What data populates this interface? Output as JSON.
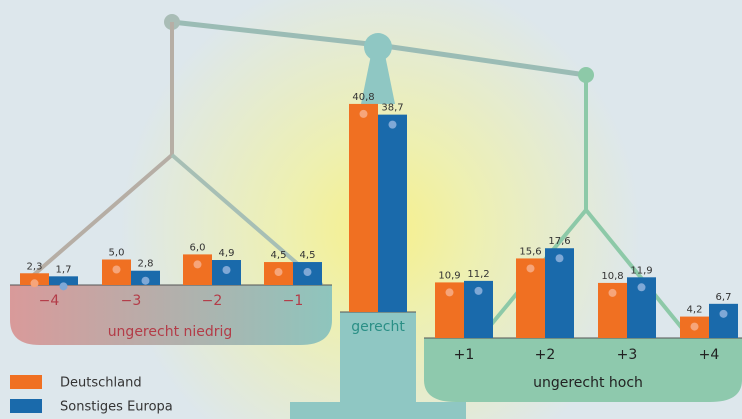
{
  "chart_data": {
    "type": "bar",
    "categories": [
      "−4",
      "−3",
      "−2",
      "−1",
      "gerecht",
      "+1",
      "+2",
      "+3",
      "+4"
    ],
    "series": [
      {
        "name": "Deutschland",
        "color": "#f07022",
        "values": [
          2.3,
          5.0,
          6.0,
          4.5,
          40.8,
          10.9,
          15.6,
          10.8,
          4.2
        ],
        "value_labels": [
          "2,3",
          "5,0",
          "6,0",
          "4,5",
          "40,8",
          "10,9",
          "15,6",
          "10,8",
          "4,2"
        ]
      },
      {
        "name": "Sonstiges Europa",
        "color": "#1a6aab",
        "values": [
          1.7,
          2.8,
          4.9,
          4.5,
          38.7,
          11.2,
          17.6,
          11.9,
          6.7
        ],
        "value_labels": [
          "1,7",
          "2,8",
          "4,9",
          "4,5",
          "38,7",
          "11,2",
          "17,6",
          "11,9",
          "6,7"
        ]
      }
    ],
    "group_labels": [
      "ungerecht niedrig",
      "ungerecht hoch"
    ]
  }
}
